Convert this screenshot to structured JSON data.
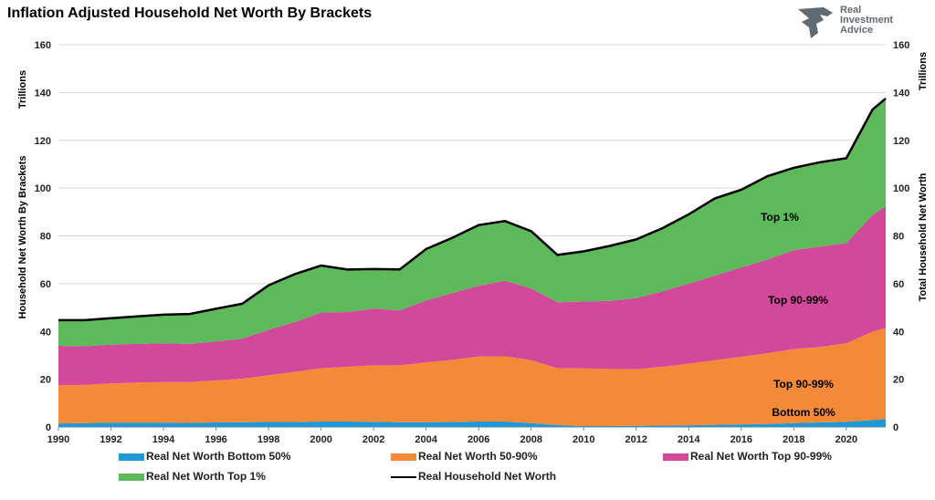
{
  "chart_data": {
    "type": "area",
    "title": "Inflation Adjusted Household Net Worth By Brackets",
    "ylabel_left": "Household Net Worth By Brackets",
    "ylabel_right": "Total Household Net Worth",
    "yunit_left": "Trillions",
    "yunit_right": "Trillions",
    "ylim": [
      0,
      160
    ],
    "yticks": [
      "0",
      "20",
      "40",
      "60",
      "80",
      "100",
      "120",
      "140",
      "160"
    ],
    "xlim": [
      1990,
      2021.5
    ],
    "xticks": [
      "1990",
      "1992",
      "1994",
      "1996",
      "1998",
      "2000",
      "2002",
      "2004",
      "2006",
      "2008",
      "2010",
      "2012",
      "2014",
      "2016",
      "2018",
      "2020"
    ],
    "grid": true,
    "stacked": true,
    "x": [
      1990,
      1991,
      1992,
      1993,
      1994,
      1995,
      1996,
      1997,
      1998,
      1999,
      2000,
      2001,
      2002,
      2003,
      2004,
      2005,
      2006,
      2007,
      2008,
      2009,
      2010,
      2011,
      2012,
      2013,
      2014,
      2015,
      2016,
      2017,
      2018,
      2019,
      2020,
      2021,
      2021.5
    ],
    "series": [
      {
        "name": "Real Net Worth Bottom 50%",
        "color": "#1f9ad6",
        "values": [
          1.5,
          1.6,
          1.8,
          1.8,
          1.8,
          1.7,
          1.9,
          2.0,
          2.1,
          2.1,
          2.3,
          2.3,
          2.2,
          2.0,
          2.0,
          2.1,
          2.3,
          2.3,
          1.6,
          0.8,
          0.4,
          0.4,
          0.5,
          0.6,
          0.7,
          0.9,
          1.1,
          1.3,
          1.6,
          1.9,
          2.2,
          2.9,
          3.4
        ]
      },
      {
        "name": "Real Net Worth 50-90%",
        "color": "#f28a37",
        "values": [
          16.0,
          16.0,
          16.4,
          16.8,
          17.0,
          17.1,
          17.6,
          18.2,
          19.6,
          21.0,
          22.3,
          22.9,
          23.6,
          23.8,
          25.0,
          26.0,
          27.2,
          27.3,
          26.4,
          23.8,
          24.1,
          23.9,
          23.7,
          24.6,
          25.8,
          27.1,
          28.3,
          29.6,
          31.0,
          31.6,
          32.8,
          37.0,
          38.0
        ]
      },
      {
        "name": "Real Net Worth Top 90-99%",
        "color": "#d2499b",
        "values": [
          16.5,
          16.2,
          16.3,
          16.2,
          16.2,
          16.0,
          16.3,
          16.8,
          19.0,
          20.8,
          23.3,
          22.9,
          23.8,
          23.0,
          26.0,
          28.0,
          29.6,
          31.6,
          30.0,
          27.6,
          28.0,
          28.5,
          29.8,
          31.6,
          33.5,
          35.4,
          37.4,
          39.2,
          41.4,
          42.0,
          42.0,
          48.9,
          51.0
        ]
      },
      {
        "name": "Real Net Worth Top 1%",
        "color": "#5db95a",
        "values": [
          10.7,
          10.9,
          11.0,
          11.5,
          12.0,
          12.5,
          13.7,
          14.6,
          18.6,
          20.1,
          19.7,
          17.8,
          16.5,
          17.2,
          21.5,
          23.1,
          25.4,
          25.0,
          24.0,
          19.8,
          21.0,
          23.0,
          24.5,
          26.4,
          29.0,
          32.3,
          32.5,
          34.9,
          34.5,
          35.3,
          35.5,
          44.1,
          45.1
        ]
      }
    ],
    "total_series": {
      "name": "Real Household Net Worth",
      "color": "#000000",
      "values": [
        44.7,
        44.7,
        45.5,
        46.3,
        47.0,
        47.3,
        49.5,
        51.6,
        59.3,
        64.0,
        67.6,
        65.9,
        66.1,
        66.0,
        74.5,
        79.2,
        84.5,
        86.2,
        82.0,
        72.0,
        73.5,
        75.8,
        78.5,
        83.2,
        89.0,
        95.7,
        99.3,
        105.0,
        108.5,
        110.8,
        112.5,
        132.9,
        137.5
      ]
    },
    "annotations": [
      "Top 1%",
      "Top 90-99%",
      "Top 90-99%",
      "Bottom 50%"
    ]
  },
  "logo": {
    "line1": "Real",
    "line2": "Investment",
    "line3": "Advice",
    "icon": "eagle-icon"
  },
  "legend": {
    "bottom50": "Real Net Worth Bottom 50%",
    "mid": "Real Net Worth 50-90%",
    "top9099": "Real Net Worth Top 90-99%",
    "top1": "Real Net Worth Top 1%",
    "total": "Real Household Net Worth"
  }
}
